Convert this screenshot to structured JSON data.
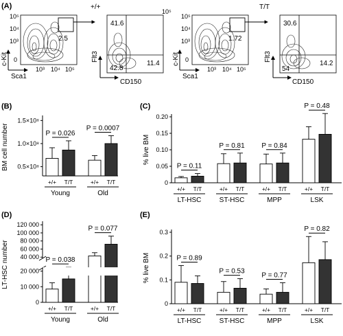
{
  "flow_panel": {
    "letter": "(A)",
    "genotypes": [
      "+/+",
      "T/T"
    ],
    "plots": [
      {
        "xlabel": "Sca1",
        "ylabel": "c-Kit",
        "gate_value": "2.5"
      },
      {
        "xlabel": "CD150",
        "ylabel": "Flt3",
        "upper_left": "41.6",
        "lower_left": "42.8",
        "lower_right": "11.4"
      },
      {
        "xlabel": "Sca1",
        "ylabel": "c-Kit",
        "gate_value": "1.72"
      },
      {
        "xlabel": "CD150",
        "ylabel": "Flt3",
        "upper_left": "30.6",
        "lower_left": "54",
        "lower_right": "14.2"
      }
    ],
    "axis_ticks": [
      "0",
      "10²",
      "10³",
      "10⁴",
      "10⁵"
    ]
  },
  "chart_data": [
    {
      "panel": "(B)",
      "type": "bar",
      "ylabel": "BM cell number",
      "yticks": [
        "0.5×10⁸",
        "1.0×10⁸",
        "1.5×10⁸"
      ],
      "ylim": [
        0.3,
        1.55
      ],
      "groups": [
        "Young",
        "Old"
      ],
      "categories": [
        "+/+",
        "T/T",
        "+/+",
        "T/T"
      ],
      "values": [
        0.68,
        0.86,
        0.64,
        1.0
      ],
      "errors": [
        0.23,
        0.2,
        0.1,
        0.17
      ],
      "fills": [
        "#ffffff",
        "#333333",
        "#ffffff",
        "#333333"
      ],
      "annotations": [
        "P = 0.026",
        "P = 0.0007"
      ]
    },
    {
      "panel": "(C)",
      "type": "bar",
      "ylabel": "% live BM",
      "yticks": [
        "0",
        "0.05",
        "0.10",
        "0.15",
        "0.20"
      ],
      "ylim": [
        0,
        0.2
      ],
      "groups": [
        "LT-HSC",
        "ST-HSC",
        "MPP",
        "LSK"
      ],
      "categories": [
        "+/+",
        "T/T",
        "+/+",
        "T/T",
        "+/+",
        "T/T",
        "+/+",
        "T/T"
      ],
      "values": [
        0.015,
        0.02,
        0.058,
        0.06,
        0.057,
        0.06,
        0.132,
        0.147
      ],
      "errors": [
        0.004,
        0.008,
        0.03,
        0.03,
        0.03,
        0.03,
        0.038,
        0.063
      ],
      "fills": [
        "#ffffff",
        "#333333",
        "#ffffff",
        "#333333",
        "#ffffff",
        "#333333",
        "#ffffff",
        "#333333"
      ],
      "annotations": [
        "P = 0.11",
        "P = 0.81",
        "P = 0.84",
        "P = 0.48"
      ]
    },
    {
      "panel": "(D)",
      "type": "bar",
      "ylabel": "LT-HSC number",
      "yticks_lower": [
        "0",
        "10 000",
        "20 000"
      ],
      "yticks_upper": [
        "40 000",
        "60 000",
        "80 000",
        "100 000",
        "120 000"
      ],
      "groups": [
        "Young",
        "Old"
      ],
      "categories": [
        "+/+",
        "T/T",
        "+/+",
        "T/T"
      ],
      "values": [
        8500,
        15000,
        43000,
        72000
      ],
      "errors": [
        4000,
        8000,
        8000,
        20000
      ],
      "fills": [
        "#ffffff",
        "#333333",
        "#ffffff",
        "#333333"
      ],
      "annotations": [
        "P = 0.038",
        "P = 0.077"
      ]
    },
    {
      "panel": "(E)",
      "type": "bar",
      "ylabel": "% live BM",
      "yticks": [
        "0",
        "0.1",
        "0.2",
        "0.3"
      ],
      "ylim": [
        0,
        0.3
      ],
      "groups": [
        "LT-HSC",
        "ST-HSC",
        "MPP",
        "LSK"
      ],
      "categories": [
        "+/+",
        "T/T",
        "+/+",
        "T/T",
        "+/+",
        "T/T",
        "+/+",
        "T/T"
      ],
      "values": [
        0.09,
        0.085,
        0.048,
        0.065,
        0.04,
        0.048,
        0.172,
        0.185
      ],
      "errors": [
        0.07,
        0.032,
        0.045,
        0.04,
        0.022,
        0.04,
        0.11,
        0.075
      ],
      "fills": [
        "#ffffff",
        "#333333",
        "#ffffff",
        "#333333",
        "#ffffff",
        "#333333",
        "#ffffff",
        "#333333"
      ],
      "annotations": [
        "P = 0.89",
        "P = 0.53",
        "P = 0.77",
        "P = 0.82"
      ]
    }
  ]
}
